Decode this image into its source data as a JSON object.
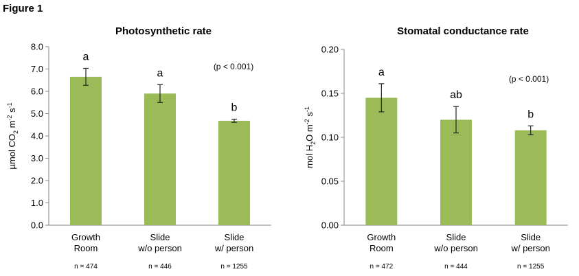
{
  "figure_label": "Figure 1",
  "chart_data": [
    {
      "type": "bar",
      "title": "Photosynthetic rate",
      "ylabel": {
        "base": "µmol CO",
        "sub": "2",
        "mid": " m",
        "sup1": "-2",
        "mid2": " s",
        "sup2": "-1"
      },
      "ylim": [
        0,
        8
      ],
      "yticks": [
        "0.0",
        "1.0",
        "2.0",
        "3.0",
        "4.0",
        "5.0",
        "6.0",
        "7.0",
        "8.0"
      ],
      "ytick_values": [
        0,
        1,
        2,
        3,
        4,
        5,
        6,
        7,
        8
      ],
      "categories": [
        [
          "Growth",
          "Room"
        ],
        [
          "Slide",
          "w/o person"
        ],
        [
          "Slide",
          "w/ person"
        ]
      ],
      "values": [
        6.65,
        5.9,
        4.68
      ],
      "errors": [
        0.38,
        0.4,
        0.07
      ],
      "significance": [
        "a",
        "a",
        "b"
      ],
      "n_labels": [
        "n = 474",
        "n = 446",
        "n = 1255"
      ],
      "p_note": "(p < 0.001)",
      "color": "#9bbb59"
    },
    {
      "type": "bar",
      "title": "Stomatal conductance rate",
      "ylabel": {
        "base": "mol H",
        "sub": "2",
        "mid": "O m",
        "sup1": "-2",
        "mid2": " s",
        "sup2": "-1"
      },
      "ylim": [
        0,
        0.2
      ],
      "yticks": [
        "0.00",
        "0.05",
        "0.10",
        "0.15",
        "0.20"
      ],
      "ytick_values": [
        0,
        0.05,
        0.1,
        0.15,
        0.2
      ],
      "categories": [
        [
          "Growth",
          "Room"
        ],
        [
          "Slide",
          "w/o person"
        ],
        [
          "Slide",
          "w/ person"
        ]
      ],
      "values": [
        0.145,
        0.12,
        0.108
      ],
      "errors": [
        0.016,
        0.015,
        0.005
      ],
      "significance": [
        "a",
        "ab",
        "b"
      ],
      "n_labels": [
        "n = 472",
        "n = 444",
        "n = 1255"
      ],
      "p_note": "(p < 0.001)",
      "color": "#9bbb59"
    }
  ]
}
